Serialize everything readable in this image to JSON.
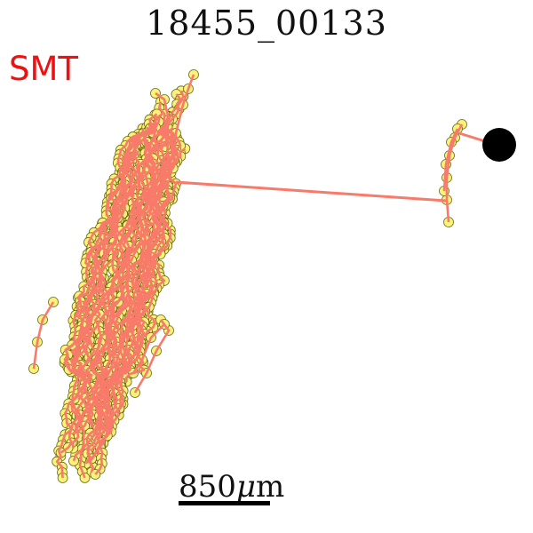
{
  "title": "18455_00133",
  "type_label": "SMT",
  "scale_bar": {
    "value": "850",
    "unit_symbol": "μ",
    "unit": "m"
  },
  "colors": {
    "label": "#ee1111",
    "trace": "#f87a6a",
    "node_fill": "#fbf27a",
    "node_stroke": "#6b6a1a",
    "soma": "#000000"
  }
}
